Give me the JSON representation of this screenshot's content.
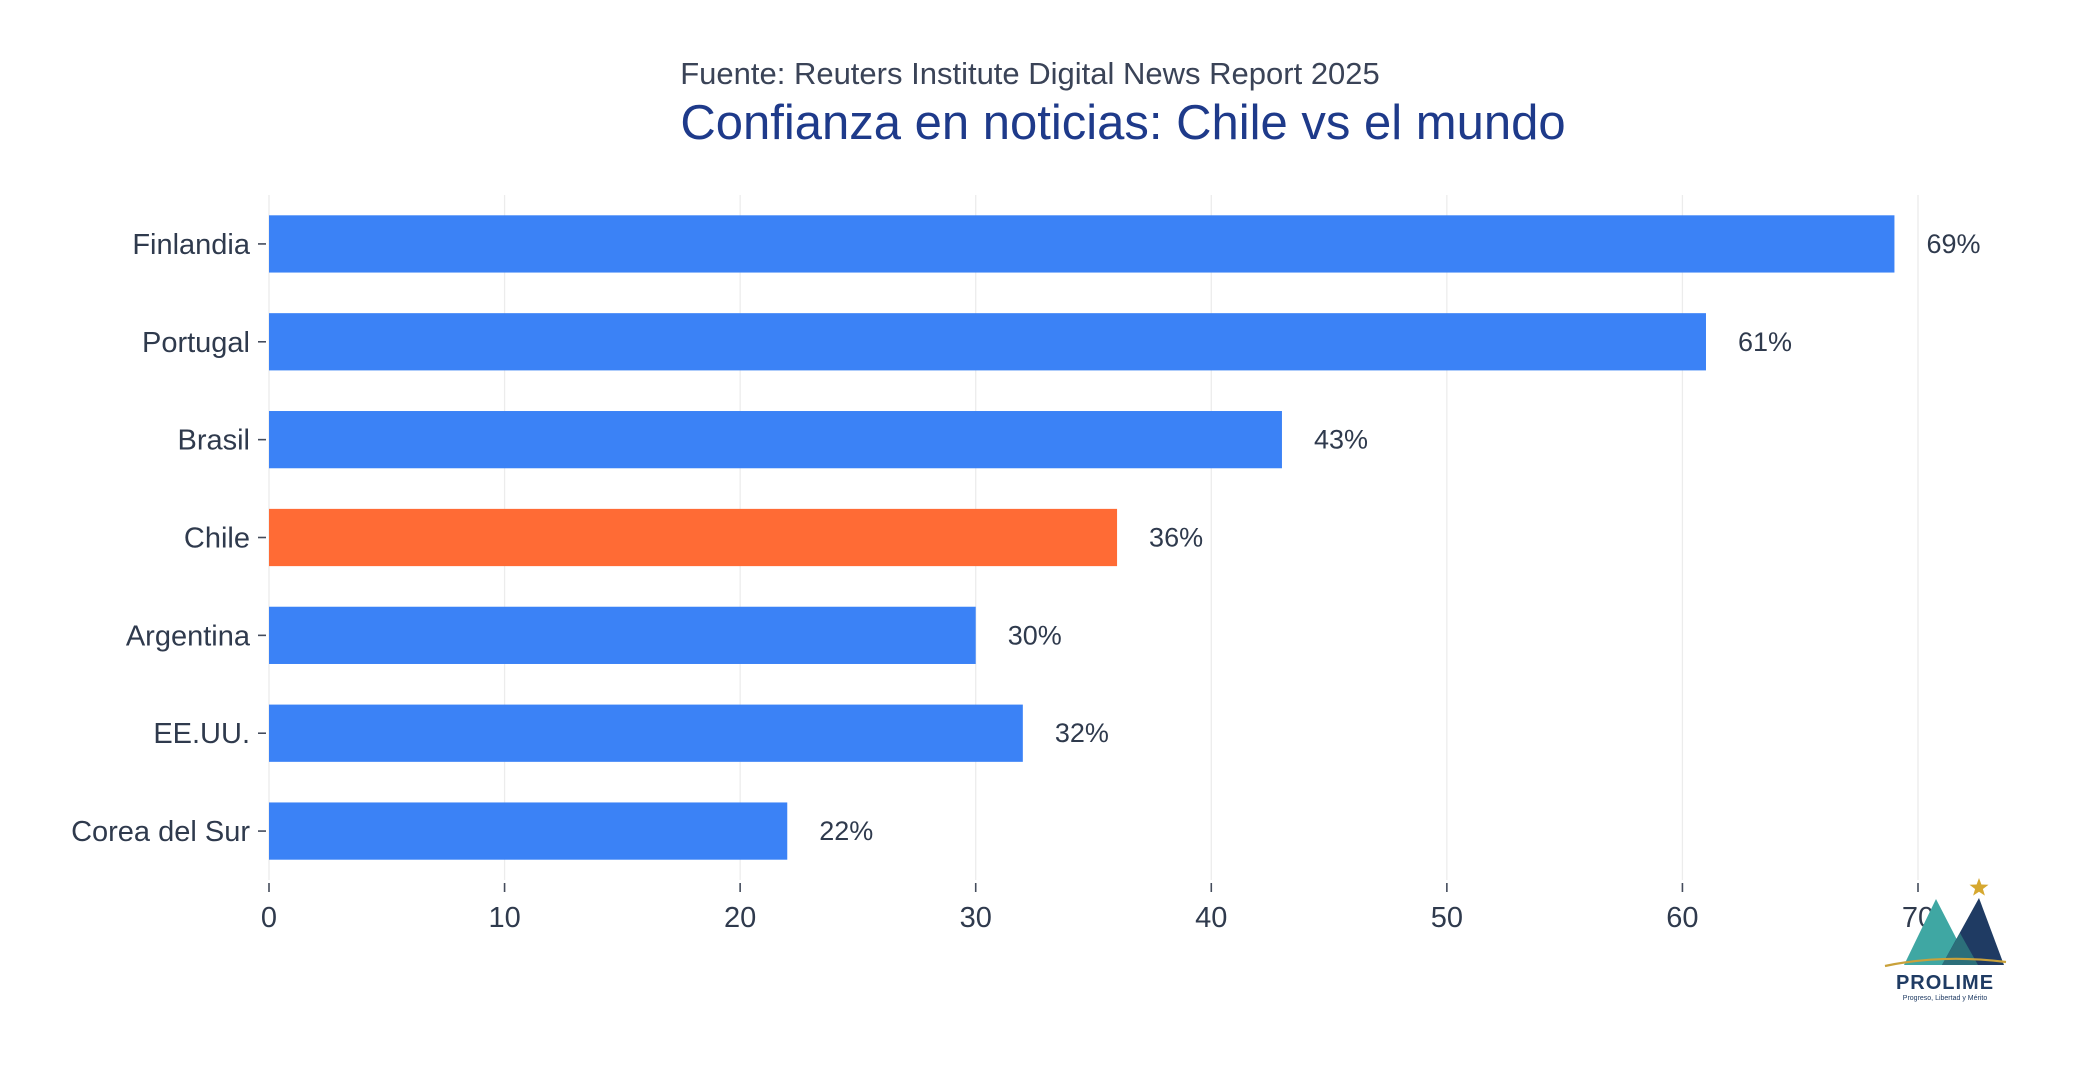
{
  "chart_data": {
    "type": "bar",
    "orientation": "horizontal",
    "title": "Confianza en noticias: Chile vs el mundo",
    "subtitle": "Fuente: Reuters Institute Digital News Report 2025",
    "xlabel": "",
    "ylabel": "",
    "categories": [
      "Finlandia",
      "Portugal",
      "Brasil",
      "Chile",
      "Argentina",
      "EE.UU.",
      "Corea del Sur"
    ],
    "values": [
      69,
      61,
      43,
      36,
      30,
      32,
      22
    ],
    "data_labels": [
      "69%",
      "61%",
      "43%",
      "36%",
      "30%",
      "32%",
      "22%"
    ],
    "xlim": [
      0,
      70
    ],
    "x_ticks": [
      0,
      10,
      20,
      30,
      40,
      50,
      60,
      70
    ],
    "x_tick_labels": [
      "0",
      "10",
      "20",
      "30",
      "40",
      "50",
      "60",
      "70"
    ],
    "grid": "vertical",
    "legend": "none",
    "colors": {
      "default_bar": "#3b82f6",
      "highlight_bar": "#ff6b35",
      "title": "#1e3a8a"
    },
    "highlight_category": "Chile"
  },
  "logo": {
    "name": "PROLIME",
    "tagline": "Progreso, Libertad y Mérito"
  }
}
